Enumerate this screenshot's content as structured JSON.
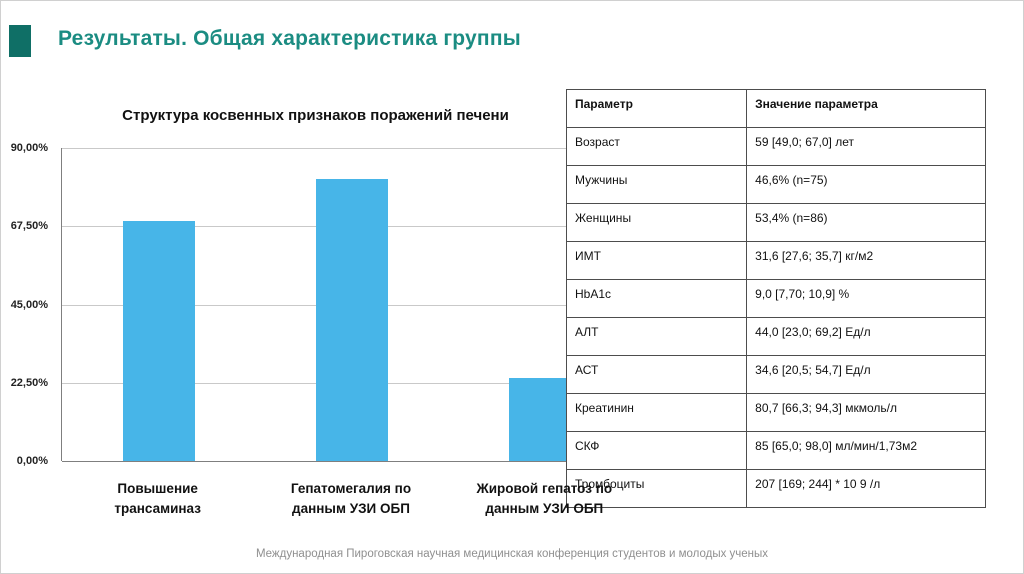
{
  "slide": {
    "title": "Результаты. Общая характеристика группы",
    "title_color": "#1b8c82",
    "accent_color": "#0f6f66",
    "footer": "Международная Пироговская научная медицинская конференция студентов и молодых ученых"
  },
  "chart_data": {
    "type": "bar",
    "title": "Структура косвенных признаков поражений печени",
    "categories": [
      "Повышение трансаминаз",
      "Гепатомегалия по данным УЗИ ОБП",
      "Жировой гепатоз по данным УЗИ ОБП"
    ],
    "values": [
      69,
      81,
      24
    ],
    "unit": "%",
    "ylim": [
      0,
      90
    ],
    "ytick_labels": [
      "90,00%",
      "67,50%",
      "45,00%",
      "22,50%",
      "0,00%"
    ],
    "grid": "horizontal",
    "legend": "none",
    "bar_color": "#47b5e8"
  },
  "table": {
    "headers": [
      "Параметр",
      "Значение параметра"
    ],
    "rows": [
      [
        "Возраст",
        "59 [49,0; 67,0] лет"
      ],
      [
        "Мужчины",
        "46,6% (n=75)"
      ],
      [
        "Женщины",
        "53,4% (n=86)"
      ],
      [
        "ИМТ",
        "31,6 [27,6; 35,7] кг/м2"
      ],
      [
        "HbA1c",
        "9,0 [7,70; 10,9] %"
      ],
      [
        "АЛТ",
        "44,0 [23,0; 69,2] Ед/л"
      ],
      [
        "АСТ",
        "34,6 [20,5; 54,7] Ед/л"
      ],
      [
        "Креатинин",
        "80,7 [66,3; 94,3] мкмоль/л"
      ],
      [
        "СКФ",
        "85 [65,0; 98,0] мл/мин/1,73м2"
      ],
      [
        "Тромбоциты",
        "207 [169; 244] * 10 9 /л"
      ]
    ]
  }
}
